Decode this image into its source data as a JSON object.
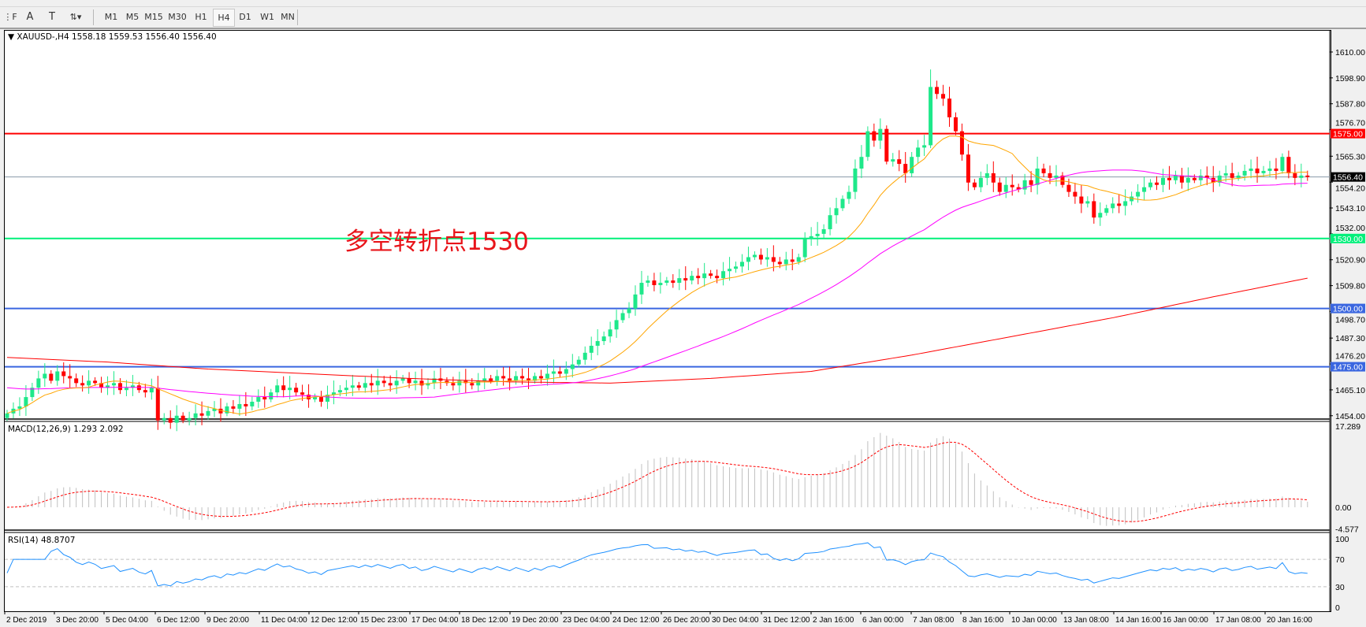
{
  "toolbar": {
    "tools": [
      {
        "name": "fibo-lines-icon",
        "glyph": "⋮F"
      },
      {
        "name": "text-icon",
        "glyph": "A"
      },
      {
        "name": "text-label-icon",
        "glyph": "T"
      },
      {
        "name": "arrows-icon",
        "glyph": "⇅▾"
      }
    ],
    "timeframes": [
      "M1",
      "M5",
      "M15",
      "M30",
      "H1",
      "H4",
      "D1",
      "W1",
      "MN"
    ],
    "active_timeframe": "H4"
  },
  "chart": {
    "symbol_header": "XAUUSD-,H4  1558.18 1559.53 1556.40 1556.40",
    "annotation": "多空转折点1530",
    "price_ticks": [
      "1610.00",
      "1598.90",
      "1587.80",
      "1576.70",
      "1565.30",
      "1554.20",
      "1543.10",
      "1532.00",
      "1520.90",
      "1509.80",
      "1498.70",
      "1487.30",
      "1476.20",
      "1465.10",
      "1454.00"
    ],
    "hlines": [
      {
        "price": 1575,
        "label": "1575.00",
        "color": "#ff0000"
      },
      {
        "price": 1556.4,
        "label": "1556.40",
        "color": "#000000",
        "line_color": "#8a9aa8"
      },
      {
        "price": 1530,
        "label": "1530.00",
        "color": "#00f07a"
      },
      {
        "price": 1500,
        "label": "1500.00",
        "color": "#3a66e0"
      },
      {
        "price": 1475,
        "label": "1475.00",
        "color": "#3a66e0"
      }
    ],
    "time_labels": [
      "2 Dec 2019",
      "3 Dec 20:00",
      "5 Dec 04:00",
      "6 Dec 12:00",
      "9 Dec 20:00",
      "11 Dec 04:00",
      "12 Dec 12:00",
      "15 Dec 23:00",
      "17 Dec 04:00",
      "18 Dec 12:00",
      "19 Dec 20:00",
      "23 Dec 04:00",
      "24 Dec 12:00",
      "26 Dec 20:00",
      "30 Dec 04:00",
      "31 Dec 12:00",
      "2 Jan 16:00",
      "6 Jan 00:00",
      "7 Jan 08:00",
      "8 Jan 16:00",
      "10 Jan 00:00",
      "13 Jan 08:00",
      "14 Jan 16:00",
      "16 Jan 00:00",
      "17 Jan 08:00",
      "20 Jan 16:00"
    ],
    "colors": {
      "bull": "#1ee88a",
      "bear": "#ff0000",
      "ma_fast": "#ffa500",
      "ma_mid": "#ff00ff",
      "ma_slow": "#ff0000",
      "macd_hist": "#c0c0c0",
      "macd_signal": "#ff0000",
      "rsi": "#1e90ff"
    }
  },
  "macd": {
    "label": "MACD(12,26,9) 1.293 2.092",
    "ticks": [
      "17.289",
      "0.00",
      "-4.577"
    ]
  },
  "rsi": {
    "label": "RSI(14) 48.8707",
    "ticks": [
      "100",
      "70",
      "30",
      "0"
    ],
    "levels": [
      70,
      30
    ]
  },
  "chart_data": {
    "type": "candlestick",
    "symbol": "XAUUSD-",
    "timeframe": "H4",
    "ylim": [
      1454,
      1610
    ],
    "close": [
      1455,
      1457,
      1458,
      1462,
      1466,
      1470,
      1472,
      1469,
      1473,
      1471,
      1470,
      1468,
      1467,
      1469,
      1468,
      1466,
      1467,
      1468,
      1465,
      1466,
      1467,
      1465,
      1464,
      1466,
      1452,
      1453,
      1451,
      1454,
      1452,
      1453,
      1455,
      1454,
      1456,
      1457,
      1455,
      1458,
      1457,
      1459,
      1458,
      1460,
      1462,
      1461,
      1464,
      1467,
      1465,
      1466,
      1464,
      1463,
      1461,
      1462,
      1460,
      1463,
      1464,
      1465,
      1466,
      1467,
      1466,
      1468,
      1467,
      1469,
      1468,
      1467,
      1469,
      1470,
      1468,
      1469,
      1467,
      1468,
      1470,
      1469,
      1468,
      1467,
      1469,
      1468,
      1467,
      1469,
      1470,
      1469,
      1471,
      1470,
      1469,
      1471,
      1470,
      1469,
      1471,
      1470,
      1472,
      1473,
      1472,
      1474,
      1476,
      1478,
      1481,
      1484,
      1486,
      1488,
      1491,
      1495,
      1498,
      1500,
      1506,
      1511,
      1512,
      1510,
      1511,
      1512,
      1511,
      1513,
      1512,
      1514,
      1513,
      1515,
      1514,
      1513,
      1516,
      1517,
      1518,
      1520,
      1522,
      1523,
      1521,
      1522,
      1520,
      1519,
      1521,
      1520,
      1522,
      1530,
      1531,
      1532,
      1534,
      1540,
      1543,
      1547,
      1550,
      1560,
      1565,
      1576,
      1572,
      1577,
      1563,
      1564,
      1562,
      1558,
      1565,
      1569,
      1570,
      1595,
      1592,
      1590,
      1582,
      1576,
      1566,
      1554,
      1552,
      1556,
      1558,
      1554,
      1550,
      1553,
      1552,
      1551,
      1555,
      1553,
      1560,
      1558,
      1556,
      1557,
      1553,
      1550,
      1548,
      1545,
      1546,
      1539,
      1541,
      1543,
      1545,
      1544,
      1546,
      1548,
      1550,
      1552,
      1554,
      1553,
      1556,
      1555,
      1557,
      1554,
      1556,
      1555,
      1557,
      1556,
      1554,
      1557,
      1558,
      1556,
      1557,
      1559,
      1560,
      1558,
      1559,
      1560,
      1559,
      1565,
      1558,
      1556,
      1557,
      1556.4
    ],
    "ma_slow": [
      [
        0,
        1479
      ],
      [
        16,
        1477
      ],
      [
        32,
        1474
      ],
      [
        48,
        1472
      ],
      [
        64,
        1470
      ],
      [
        80,
        1468.5
      ],
      [
        96,
        1468
      ],
      [
        112,
        1470
      ],
      [
        128,
        1473
      ],
      [
        144,
        1480
      ],
      [
        160,
        1488
      ],
      [
        176,
        1496
      ],
      [
        192,
        1505
      ],
      [
        207,
        1513
      ]
    ]
  }
}
